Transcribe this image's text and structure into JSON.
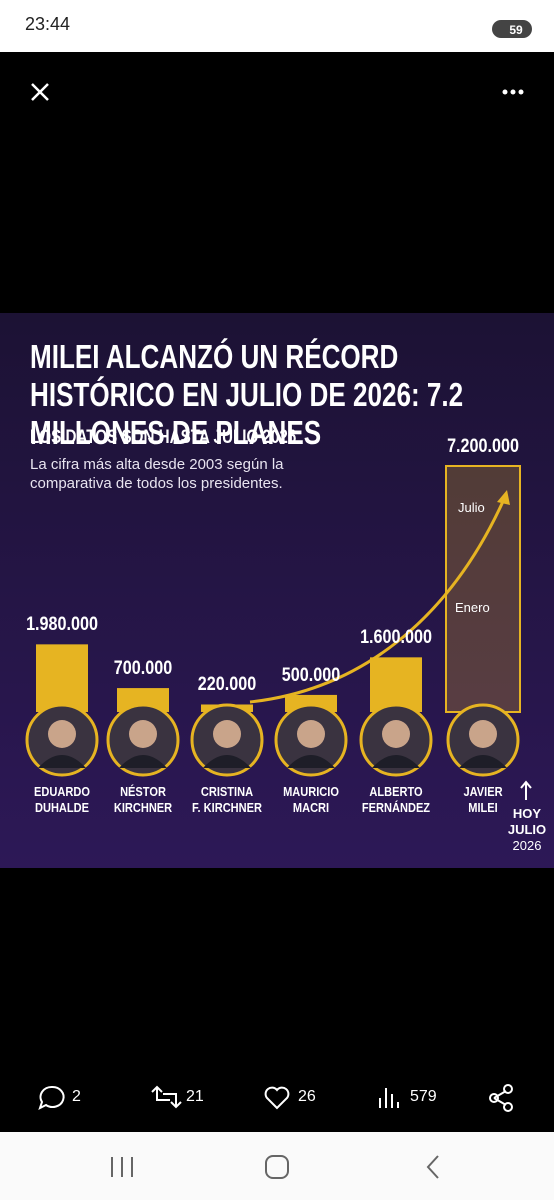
{
  "status_bar": {
    "time": "23:44",
    "battery": "59"
  },
  "chart_data": {
    "type": "bar",
    "title": "MILEI ALCANZÓ UN RÉCORD HISTÓRICO EN JULIO DE 2026: 7.2 MILLONES DE PLANES",
    "subtitle": "LOS DATOS SON HASTA JULIO 2026",
    "note": "La cifra más alta desde 2003 según la comparativa de todos los presidentes.",
    "categories": [
      "EDUARDO\nDUHALDE",
      "NÉSTOR\nKIRCHNER",
      "CRISTINA\nF. KIRCHNER",
      "MAURICIO\nMACRI",
      "ALBERTO\nFERNÁNDEZ",
      "JAVIER\nMILEI"
    ],
    "values": [
      1980000,
      700000,
      220000,
      500000,
      1600000,
      7200000
    ],
    "value_labels": [
      "1.980.000",
      "700.000",
      "220.000",
      "500.000",
      "1.600.000",
      "7.200.000"
    ],
    "color": "#e6b422",
    "ylim": [
      0,
      7200000
    ],
    "annotations": [
      "Julio",
      "Enero",
      "HOY",
      "JULIO",
      "2026"
    ]
  },
  "actions": {
    "replies": 2,
    "reposts": 21,
    "likes": 26,
    "views": 579
  }
}
